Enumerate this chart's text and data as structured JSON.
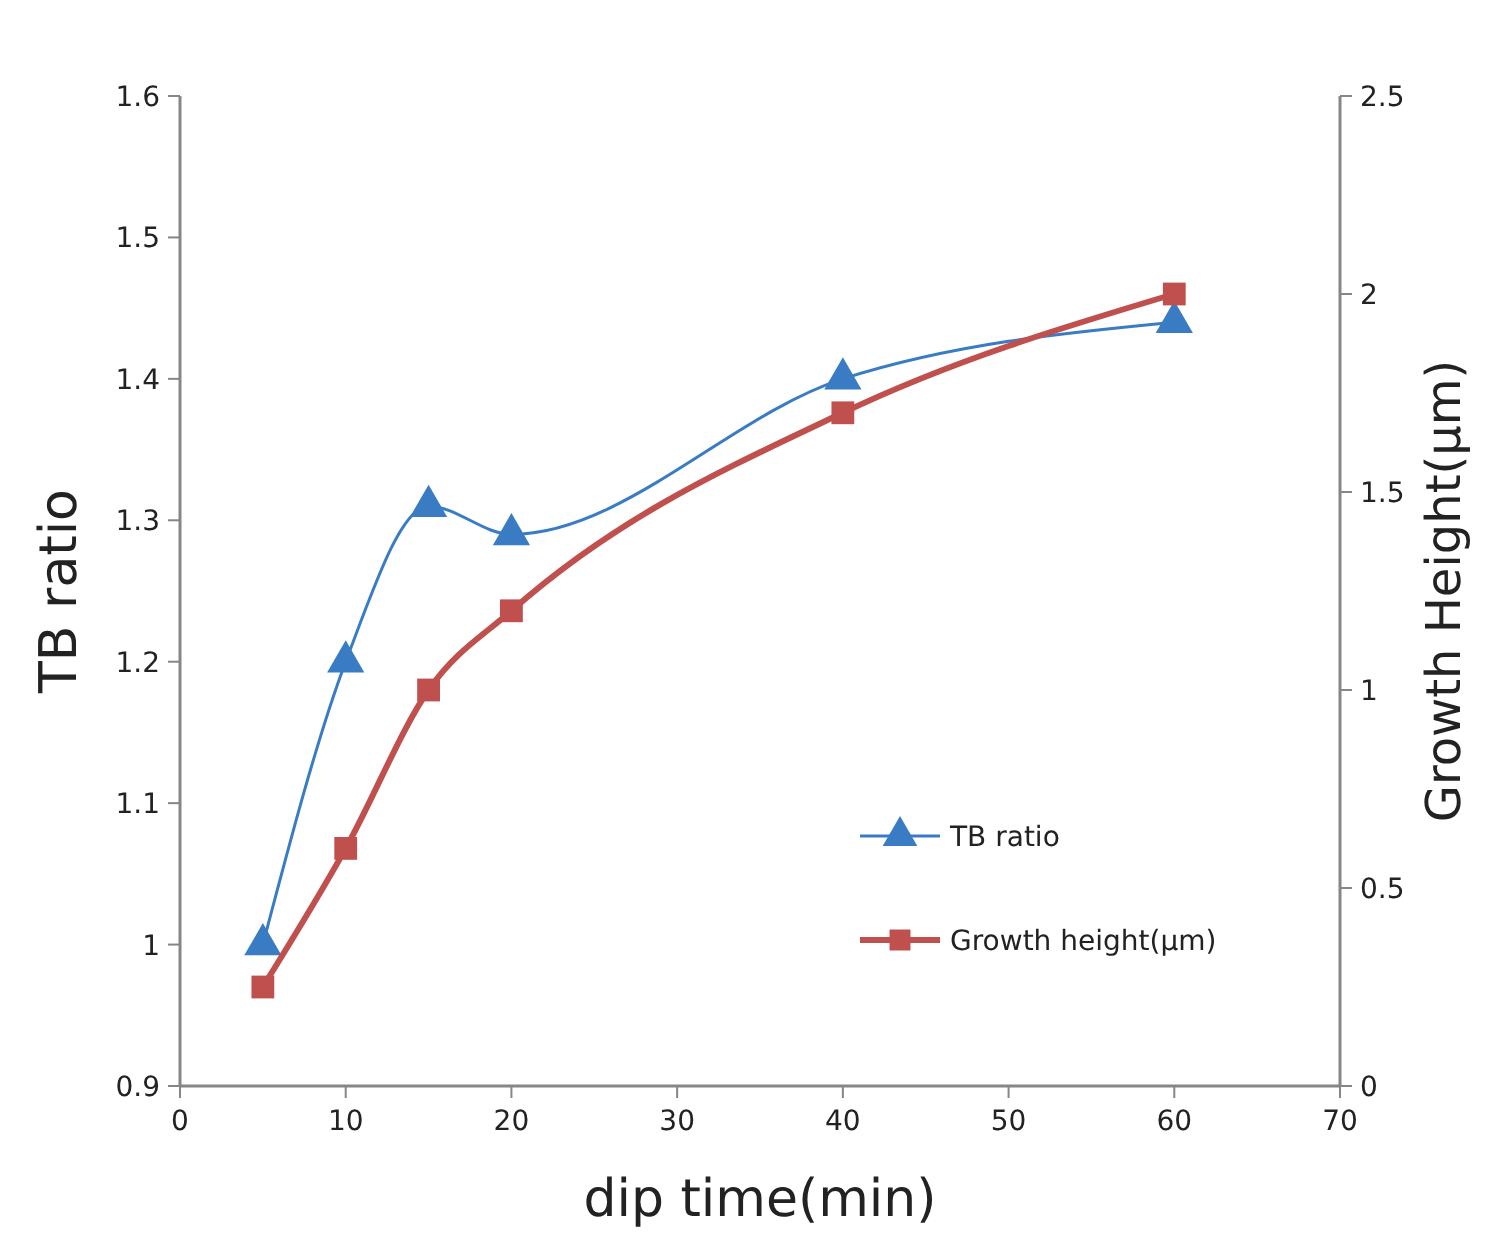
{
  "chart_data": {
    "type": "line",
    "xlabel": "dip time(min)",
    "ylabel": "TB ratio",
    "y2label": "Growth Height(μm)",
    "x": [
      5,
      10,
      15,
      20,
      40,
      60
    ],
    "series": [
      {
        "name": "TB ratio",
        "color": "#3a7cc4",
        "values": [
          1.0,
          1.2,
          1.31,
          1.29,
          1.4,
          1.44
        ],
        "marker": "triangle"
      },
      {
        "name": "Growth height(μm)",
        "color": "#c0504d",
        "values": [
          0.25,
          0.6,
          1.0,
          1.2,
          1.7,
          2.0
        ],
        "marker": "square",
        "axis": "y2"
      }
    ],
    "xlim": [
      0,
      70
    ],
    "xticks": [
      0,
      10,
      20,
      30,
      40,
      50,
      60,
      70
    ],
    "ylim": [
      0.9,
      1.6
    ],
    "yticks": [
      0.9,
      1,
      1.1,
      1.2,
      1.3,
      1.4,
      1.5,
      1.6
    ],
    "y2lim": [
      0,
      2.5
    ],
    "y2ticks": [
      0,
      0.5,
      1,
      1.5,
      2,
      2.5
    ],
    "grid": false,
    "legend": "bottom right",
    "line_style": "solid"
  }
}
